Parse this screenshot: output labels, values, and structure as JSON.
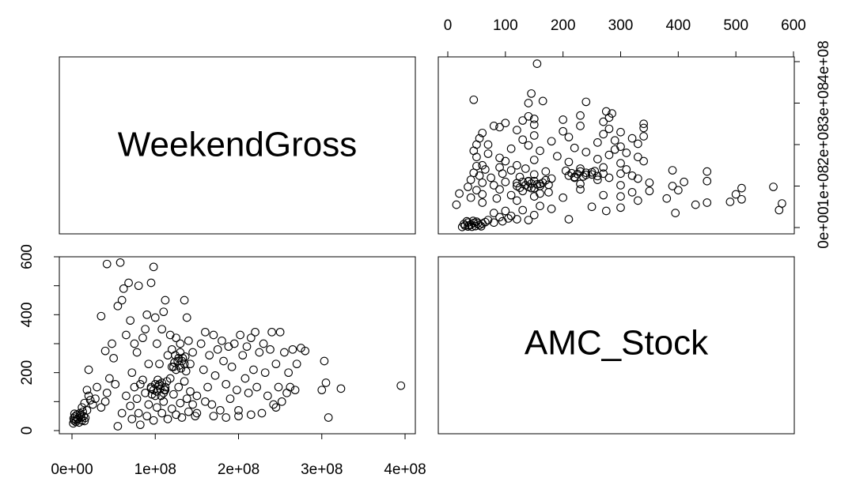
{
  "chart_data": {
    "type": "scatter",
    "layout": "pairs-matrix",
    "variables": [
      "WeekendGross",
      "AMC_Stock"
    ],
    "axes": {
      "WeekendGross": {
        "range": [
          0,
          400000000
        ],
        "ticks": [
          0,
          100000000,
          200000000,
          300000000,
          400000000
        ],
        "tick_labels": [
          "0e+00",
          "1e+08",
          "2e+08",
          "3e+08",
          "4e+08"
        ]
      },
      "AMC_Stock": {
        "range": [
          0,
          600
        ],
        "ticks": [
          0,
          100,
          200,
          300,
          400,
          500,
          600
        ],
        "tick_labels": [
          "0",
          "100",
          "200",
          "300",
          "400",
          "500",
          "600"
        ],
        "left_tick_labels": [
          "0",
          "200",
          "400",
          "600"
        ]
      }
    },
    "points": [
      [
        1500000.0,
        25
      ],
      [
        2500000.0,
        35
      ],
      [
        3500000.0,
        48
      ],
      [
        4500000.0,
        30
      ],
      [
        6000000.0,
        55
      ],
      [
        7000000.0,
        40
      ],
      [
        8500000.0,
        28
      ],
      [
        9500000.0,
        60
      ],
      [
        11000000.0,
        45
      ],
      [
        12000000.0,
        35
      ],
      [
        13000000.0,
        65
      ],
      [
        14000000.0,
        50
      ],
      [
        15000000.0,
        33
      ],
      [
        2000000.0,
        42
      ],
      [
        5000000.0,
        37
      ],
      [
        10000000.0,
        52
      ],
      [
        16000000.0,
        44
      ],
      [
        3000000.0,
        58
      ],
      [
        18000000.0,
        70
      ],
      [
        15000000.0,
        95
      ],
      [
        20000000.0,
        120
      ],
      [
        22000000.0,
        105
      ],
      [
        25000000.0,
        90
      ],
      [
        18000000.0,
        140
      ],
      [
        28000000.0,
        110
      ],
      [
        12000000.0,
        80
      ],
      [
        30000000.0,
        150
      ],
      [
        35000000.0,
        80
      ],
      [
        40000000.0,
        100
      ],
      [
        42000000.0,
        130
      ],
      [
        20000000.0,
        210
      ],
      [
        35000000.0,
        395
      ],
      [
        40000000.0,
        275
      ],
      [
        42000000.0,
        575
      ],
      [
        45000000.0,
        180
      ],
      [
        48000000.0,
        300
      ],
      [
        50000000.0,
        250
      ],
      [
        52000000.0,
        160
      ],
      [
        55000000.0,
        430
      ],
      [
        58000000.0,
        580
      ],
      [
        60000000.0,
        450
      ],
      [
        62000000.0,
        490
      ],
      [
        65000000.0,
        330
      ],
      [
        68000000.0,
        510
      ],
      [
        70000000.0,
        380
      ],
      [
        72000000.0,
        200
      ],
      [
        75000000.0,
        300
      ],
      [
        78000000.0,
        270
      ],
      [
        80000000.0,
        500
      ],
      [
        82000000.0,
        160
      ],
      [
        85000000.0,
        320
      ],
      [
        88000000.0,
        350
      ],
      [
        90000000.0,
        400
      ],
      [
        92000000.0,
        230
      ],
      [
        95000000.0,
        510
      ],
      [
        98000000.0,
        565
      ],
      [
        100000000.0,
        390
      ],
      [
        102000000.0,
        300
      ],
      [
        105000000.0,
        230
      ],
      [
        108000000.0,
        350
      ],
      [
        110000000.0,
        410
      ],
      [
        112000000.0,
        450
      ],
      [
        115000000.0,
        260
      ],
      [
        118000000.0,
        330
      ],
      [
        120000000.0,
        280
      ],
      [
        122000000.0,
        220
      ],
      [
        125000000.0,
        320
      ],
      [
        128000000.0,
        250
      ],
      [
        130000000.0,
        300
      ],
      [
        132000000.0,
        240
      ],
      [
        135000000.0,
        450
      ],
      [
        138000000.0,
        390
      ],
      [
        140000000.0,
        310
      ],
      [
        142000000.0,
        230
      ],
      [
        145000000.0,
        270
      ],
      [
        55000000.0,
        15
      ],
      [
        60000000.0,
        60
      ],
      [
        65000000.0,
        120
      ],
      [
        70000000.0,
        85
      ],
      [
        72000000.0,
        40
      ],
      [
        75000000.0,
        150
      ],
      [
        78000000.0,
        110
      ],
      [
        80000000.0,
        60
      ],
      [
        82000000.0,
        20
      ],
      [
        85000000.0,
        175
      ],
      [
        88000000.0,
        130
      ],
      [
        90000000.0,
        50
      ],
      [
        92000000.0,
        90
      ],
      [
        95000000.0,
        145
      ],
      [
        98000000.0,
        35
      ],
      [
        100000000.0,
        120
      ],
      [
        102000000.0,
        80
      ],
      [
        105000000.0,
        160
      ],
      [
        108000000.0,
        60
      ],
      [
        110000000.0,
        100
      ],
      [
        112000000.0,
        140
      ],
      [
        115000000.0,
        40
      ],
      [
        118000000.0,
        180
      ],
      [
        120000000.0,
        75
      ],
      [
        122000000.0,
        125
      ],
      [
        125000000.0,
        55
      ],
      [
        128000000.0,
        150
      ],
      [
        130000000.0,
        95
      ],
      [
        132000000.0,
        45
      ],
      [
        135000000.0,
        170
      ],
      [
        138000000.0,
        110
      ],
      [
        140000000.0,
        65
      ],
      [
        142000000.0,
        135
      ],
      [
        145000000.0,
        90
      ],
      [
        148000000.0,
        50
      ],
      [
        95000000.0,
        150
      ],
      [
        98000000.0,
        140
      ],
      [
        100000000.0,
        160
      ],
      [
        102000000.0,
        135
      ],
      [
        104000000.0,
        155
      ],
      [
        106000000.0,
        145
      ],
      [
        108000000.0,
        165
      ],
      [
        110000000.0,
        130
      ],
      [
        112000000.0,
        150
      ],
      [
        114000000.0,
        170
      ],
      [
        96000000.0,
        125
      ],
      [
        103000000.0,
        175
      ],
      [
        107000000.0,
        120
      ],
      [
        111000000.0,
        140
      ],
      [
        120000000.0,
        220
      ],
      [
        123000000.0,
        235
      ],
      [
        125000000.0,
        210
      ],
      [
        127000000.0,
        240
      ],
      [
        129000000.0,
        225
      ],
      [
        131000000.0,
        215
      ],
      [
        133000000.0,
        250
      ],
      [
        135000000.0,
        230
      ],
      [
        137000000.0,
        205
      ],
      [
        124000000.0,
        260
      ],
      [
        130000000.0,
        270
      ],
      [
        136000000.0,
        255
      ],
      [
        150000000.0,
        120
      ],
      [
        155000000.0,
        300
      ],
      [
        158000000.0,
        210
      ],
      [
        160000000.0,
        340
      ],
      [
        163000000.0,
        150
      ],
      [
        165000000.0,
        260
      ],
      [
        168000000.0,
        90
      ],
      [
        170000000.0,
        330
      ],
      [
        172000000.0,
        190
      ],
      [
        175000000.0,
        280
      ],
      [
        178000000.0,
        70
      ],
      [
        180000000.0,
        310
      ],
      [
        182000000.0,
        240
      ],
      [
        185000000.0,
        160
      ],
      [
        188000000.0,
        290
      ],
      [
        190000000.0,
        110
      ],
      [
        192000000.0,
        220
      ],
      [
        195000000.0,
        300
      ],
      [
        198000000.0,
        140
      ],
      [
        200000000.0,
        50
      ],
      [
        202000000.0,
        330
      ],
      [
        205000000.0,
        260
      ],
      [
        208000000.0,
        180
      ],
      [
        210000000.0,
        290
      ],
      [
        212000000.0,
        130
      ],
      [
        215000000.0,
        320
      ],
      [
        218000000.0,
        210
      ],
      [
        220000000.0,
        340
      ],
      [
        222000000.0,
        150
      ],
      [
        225000000.0,
        270
      ],
      [
        228000000.0,
        60
      ],
      [
        230000000.0,
        300
      ],
      [
        232000000.0,
        200
      ],
      [
        235000000.0,
        120
      ],
      [
        238000000.0,
        280
      ],
      [
        240000000.0,
        340
      ],
      [
        242000000.0,
        90
      ],
      [
        245000000.0,
        230
      ],
      [
        248000000.0,
        150
      ],
      [
        250000000.0,
        340
      ],
      [
        252000000.0,
        100
      ],
      [
        255000000.0,
        270
      ],
      [
        258000000.0,
        130
      ],
      [
        260000000.0,
        200
      ],
      [
        262000000.0,
        150
      ],
      [
        265000000.0,
        280
      ],
      [
        268000000.0,
        140
      ],
      [
        270000000.0,
        230
      ],
      [
        275000000.0,
        285
      ],
      [
        280000000.0,
        275
      ],
      [
        300000000.0,
        140
      ],
      [
        303000000.0,
        240
      ],
      [
        305000000.0,
        165
      ],
      [
        308000000.0,
        45
      ],
      [
        323000000.0,
        145
      ],
      [
        395000000.0,
        155
      ],
      [
        150000000.0,
        60
      ],
      [
        160000000.0,
        100
      ],
      [
        170000000.0,
        50
      ],
      [
        185000000.0,
        45
      ],
      [
        200000000.0,
        70
      ],
      [
        215000000.0,
        55
      ],
      [
        245000000.0,
        80
      ]
    ]
  }
}
